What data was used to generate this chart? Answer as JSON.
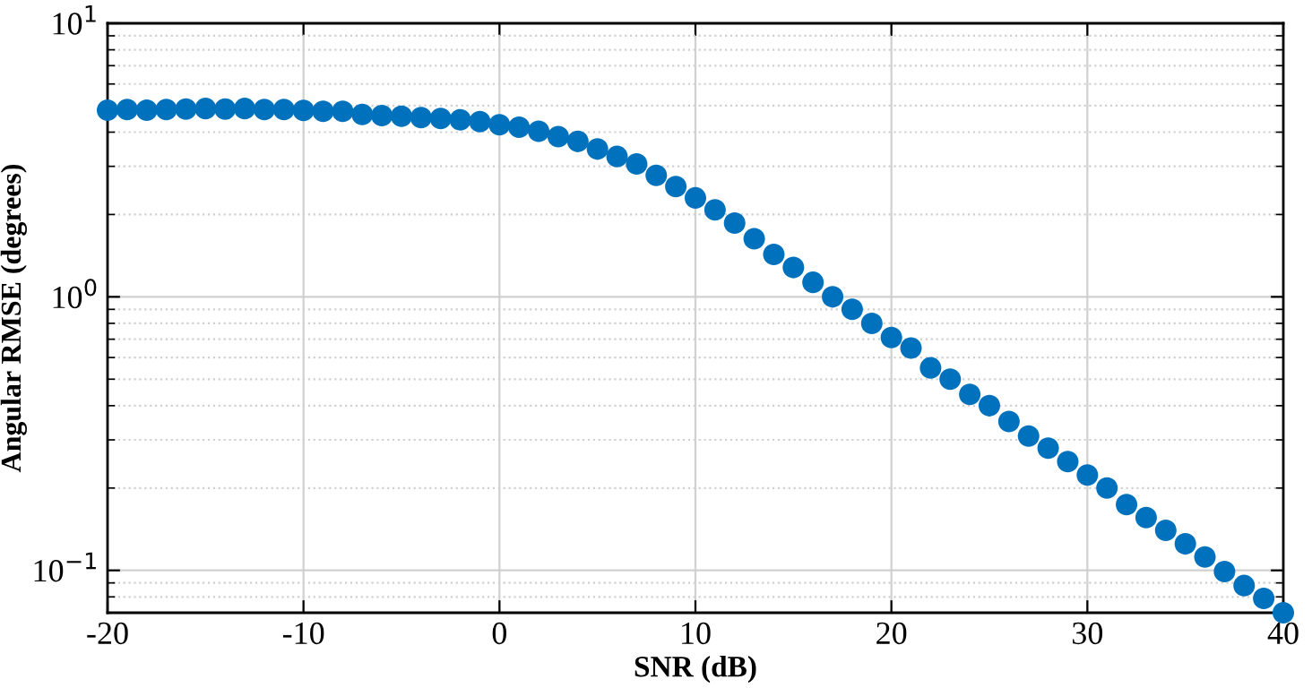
{
  "chart_data": {
    "type": "scatter",
    "xlabel": "SNR (dB)",
    "ylabel": "Angular RMSE (degrees)",
    "log": "y",
    "grid": true,
    "marker": "circle",
    "x": [
      -20,
      -19,
      -18,
      -17,
      -16,
      -15,
      -14,
      -13,
      -12,
      -11,
      -10,
      -9,
      -8,
      -7,
      -6,
      -5,
      -4,
      -3,
      -2,
      -1,
      0,
      1,
      2,
      3,
      4,
      5,
      6,
      7,
      8,
      9,
      10,
      11,
      12,
      13,
      14,
      15,
      16,
      17,
      18,
      19,
      20,
      21,
      22,
      23,
      24,
      25,
      26,
      27,
      28,
      29,
      30,
      31,
      32,
      33,
      34,
      35,
      36,
      37,
      38,
      39,
      40
    ],
    "series": [
      {
        "color": "#0072bd",
        "values": [
          4.81,
          4.84,
          4.81,
          4.84,
          4.86,
          4.88,
          4.86,
          4.88,
          4.84,
          4.84,
          4.8,
          4.77,
          4.77,
          4.64,
          4.6,
          4.57,
          4.52,
          4.49,
          4.44,
          4.37,
          4.26,
          4.17,
          4.03,
          3.85,
          3.7,
          3.47,
          3.26,
          3.06,
          2.78,
          2.53,
          2.3,
          2.08,
          1.86,
          1.63,
          1.43,
          1.28,
          1.13,
          1.0,
          0.9,
          0.8,
          0.71,
          0.65,
          0.55,
          0.5,
          0.44,
          0.4,
          0.35,
          0.31,
          0.28,
          0.25,
          0.223,
          0.2,
          0.174,
          0.156,
          0.14,
          0.125,
          0.112,
          0.099,
          0.088,
          0.079,
          0.07
        ]
      }
    ],
    "xlim": [
      -20,
      40
    ],
    "xticks": [
      -20,
      -10,
      0,
      10,
      20,
      30,
      40
    ],
    "ylim": [
      0.07,
      10
    ],
    "yticks": [
      {
        "value": 0.1,
        "label": "10$^{−1}$"
      },
      {
        "value": 1,
        "label": "10$^{0}$"
      },
      {
        "value": 10,
        "label": "10$^{1}$"
      }
    ]
  }
}
